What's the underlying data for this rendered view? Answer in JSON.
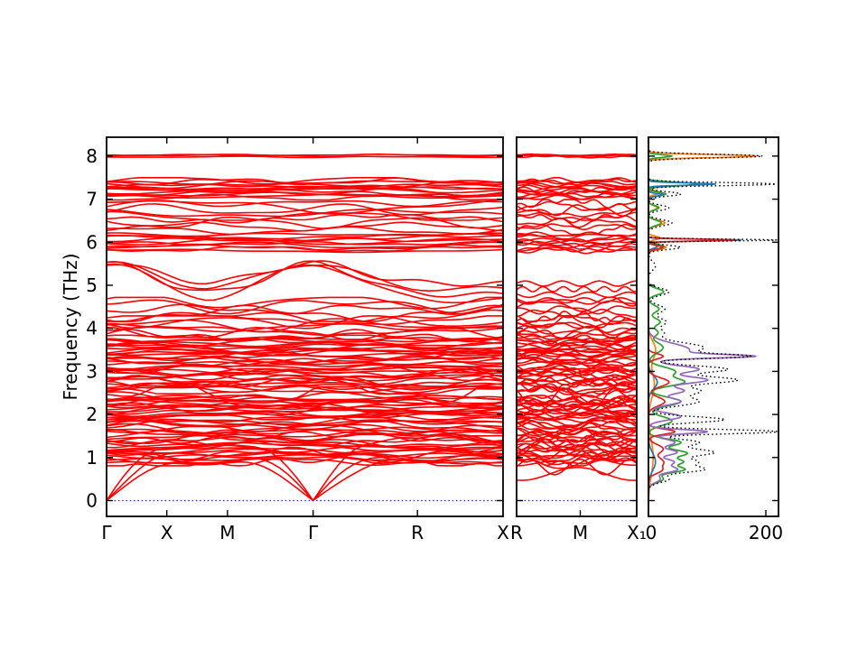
{
  "page": {
    "background": "#ffffff"
  },
  "chart_data": {
    "type": "line",
    "subtype": "phonon band structure with projected density of states",
    "title": "",
    "ylabel": "Frequency (THz)",
    "ylim": [
      -0.37,
      8.44
    ],
    "yticks": [
      0,
      1,
      2,
      3,
      4,
      5,
      6,
      7,
      8
    ],
    "band_color": "#ff0000",
    "zero_line_color": "#2222cc",
    "panels": [
      {
        "id": "bands-main",
        "kpath_labels": [
          "Γ",
          "X",
          "M",
          "Γ",
          "R",
          "X"
        ],
        "kpath_fracs": [
          0,
          0.152,
          0.305,
          0.521,
          0.784,
          1.0
        ],
        "gamma_fracs": [
          0,
          0.521
        ]
      },
      {
        "id": "bands-rmx",
        "kpath_labels": [
          "R",
          "M",
          "X₁"
        ],
        "kpath_fracs": [
          0,
          0.53,
          1.0
        ],
        "gamma_fracs": []
      },
      {
        "id": "dos",
        "xticks": [
          0,
          200
        ],
        "xlim": [
          0,
          221
        ]
      }
    ],
    "band_groups": [
      {
        "fmin": 7.97,
        "fmax": 8.04,
        "n": 3,
        "wiggle": 0.018
      },
      {
        "fmin": 7.02,
        "fmax": 7.46,
        "n": 13,
        "wiggle": 0.07
      },
      {
        "fmin": 6.55,
        "fmax": 6.95,
        "n": 5,
        "wiggle": 0.13
      },
      {
        "fmin": 6.22,
        "fmax": 6.6,
        "n": 4,
        "wiggle": 0.11
      },
      {
        "fmin": 5.78,
        "fmax": 6.2,
        "n": 10,
        "wiggle": 0.06
      },
      {
        "fmin": 4.65,
        "fmax": 5.55,
        "n": 4,
        "wiggle": 0.12,
        "style": "dome"
      },
      {
        "fmin": 4.2,
        "fmax": 4.68,
        "n": 5,
        "wiggle": 0.15
      },
      {
        "fmin": 3.78,
        "fmax": 4.25,
        "n": 7,
        "wiggle": 0.12
      },
      {
        "fmin": 3.42,
        "fmax": 3.8,
        "n": 11,
        "wiggle": 0.08
      },
      {
        "fmin": 3.0,
        "fmax": 3.46,
        "n": 12,
        "wiggle": 0.09
      },
      {
        "fmin": 2.52,
        "fmax": 3.02,
        "n": 13,
        "wiggle": 0.1
      },
      {
        "fmin": 2.3,
        "fmax": 2.6,
        "n": 2,
        "wiggle": 0.22
      },
      {
        "fmin": 1.92,
        "fmax": 2.4,
        "n": 16,
        "wiggle": 0.09
      },
      {
        "fmin": 0.85,
        "fmax": 1.9,
        "n": 28,
        "wiggle": 0.11
      }
    ],
    "acoustic": {
      "caps": [
        0.9,
        1.05,
        1.25
      ],
      "slopes": [
        5.0,
        6.0,
        7.0
      ],
      "wiggle": 0.05,
      "no_gamma_bands": [
        [
          0.62,
          0.15
        ],
        [
          0.78,
          0.18
        ],
        [
          0.95,
          0.2
        ]
      ]
    },
    "dos_curves": [
      {
        "name": "partial-dos-orange",
        "color": "#ff7f0e",
        "style": "solid",
        "peaks": [
          [
            8.0,
            185,
            0.035
          ],
          [
            7.15,
            22,
            0.04
          ],
          [
            6.8,
            15,
            0.05
          ],
          [
            6.45,
            28,
            0.06
          ],
          [
            6.1,
            20,
            0.04
          ],
          [
            5.88,
            30,
            0.05
          ],
          [
            3.5,
            12,
            0.2
          ],
          [
            2.7,
            10,
            0.3
          ],
          [
            1.0,
            8,
            0.4
          ]
        ]
      },
      {
        "name": "partial-dos-green",
        "color": "#2ca02c",
        "style": "solid",
        "peaks": [
          [
            8.0,
            40,
            0.03
          ],
          [
            7.35,
            85,
            0.04
          ],
          [
            7.12,
            30,
            0.04
          ],
          [
            6.8,
            18,
            0.05
          ],
          [
            6.45,
            22,
            0.06
          ],
          [
            5.9,
            26,
            0.05
          ],
          [
            4.85,
            26,
            0.07
          ],
          [
            4.45,
            18,
            0.08
          ],
          [
            4.15,
            20,
            0.08
          ],
          [
            3.9,
            16,
            0.08
          ],
          [
            3.55,
            25,
            0.12
          ],
          [
            3.0,
            45,
            0.1
          ],
          [
            2.75,
            60,
            0.09
          ],
          [
            2.3,
            55,
            0.1
          ],
          [
            1.85,
            40,
            0.1
          ],
          [
            1.35,
            55,
            0.08
          ],
          [
            1.1,
            65,
            0.08
          ],
          [
            0.9,
            55,
            0.07
          ],
          [
            0.72,
            60,
            0.07
          ],
          [
            0.5,
            25,
            0.08
          ]
        ]
      },
      {
        "name": "partial-dos-blue",
        "color": "#1f77b4",
        "style": "solid",
        "peaks": [
          [
            7.35,
            115,
            0.025
          ],
          [
            7.1,
            25,
            0.03
          ],
          [
            6.05,
            160,
            0.02
          ],
          [
            5.9,
            15,
            0.04
          ],
          [
            2.75,
            15,
            0.15
          ],
          [
            0.9,
            12,
            0.2
          ]
        ]
      },
      {
        "name": "partial-dos-red",
        "color": "#e02020",
        "style": "solid",
        "peaks": [
          [
            6.05,
            150,
            0.022
          ],
          [
            5.88,
            25,
            0.04
          ],
          [
            3.35,
            25,
            0.06
          ],
          [
            2.75,
            35,
            0.1
          ],
          [
            2.3,
            28,
            0.1
          ],
          [
            1.6,
            45,
            0.06
          ],
          [
            1.2,
            25,
            0.1
          ],
          [
            0.9,
            25,
            0.1
          ],
          [
            0.7,
            20,
            0.08
          ]
        ]
      },
      {
        "name": "partial-dos-purple",
        "color": "#9467bd",
        "style": "solid",
        "peaks": [
          [
            3.5,
            70,
            0.15
          ],
          [
            3.35,
            140,
            0.04
          ],
          [
            3.05,
            85,
            0.08
          ],
          [
            2.8,
            100,
            0.08
          ],
          [
            2.55,
            60,
            0.08
          ],
          [
            2.3,
            55,
            0.08
          ],
          [
            1.95,
            55,
            0.08
          ],
          [
            1.6,
            100,
            0.05
          ],
          [
            1.35,
            45,
            0.08
          ],
          [
            1.12,
            48,
            0.07
          ],
          [
            0.9,
            42,
            0.07
          ],
          [
            0.72,
            48,
            0.07
          ],
          [
            0.5,
            20,
            0.08
          ]
        ]
      },
      {
        "name": "total-dos",
        "color": "#000000",
        "style": "dotted",
        "peaks": [
          [
            8.0,
            195,
            0.04
          ],
          [
            7.35,
            218,
            0.035
          ],
          [
            7.12,
            55,
            0.05
          ],
          [
            6.8,
            35,
            0.06
          ],
          [
            6.45,
            40,
            0.07
          ],
          [
            6.05,
            220,
            0.022
          ],
          [
            5.88,
            55,
            0.05
          ],
          [
            5.45,
            12,
            0.1
          ],
          [
            4.85,
            35,
            0.08
          ],
          [
            4.45,
            28,
            0.09
          ],
          [
            4.15,
            30,
            0.09
          ],
          [
            3.9,
            25,
            0.09
          ],
          [
            3.55,
            95,
            0.12
          ],
          [
            3.35,
            150,
            0.05
          ],
          [
            3.05,
            135,
            0.08
          ],
          [
            2.8,
            150,
            0.08
          ],
          [
            2.55,
            85,
            0.09
          ],
          [
            2.3,
            85,
            0.1
          ],
          [
            1.88,
            130,
            0.07
          ],
          [
            1.6,
            220,
            0.05
          ],
          [
            1.35,
            85,
            0.08
          ],
          [
            1.12,
            110,
            0.08
          ],
          [
            0.9,
            80,
            0.08
          ],
          [
            0.72,
            90,
            0.07
          ],
          [
            0.5,
            35,
            0.08
          ]
        ]
      }
    ]
  }
}
